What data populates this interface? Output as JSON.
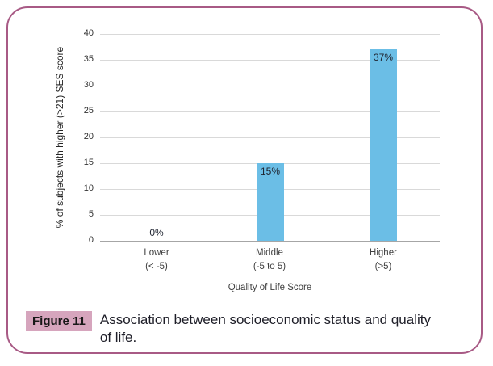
{
  "figure": {
    "label": "Figure 11",
    "caption": "Association between socioeconomic status and quality of life.",
    "border_color": "#a85a85",
    "label_bg": "#d6a5bd"
  },
  "chart_data": {
    "type": "bar",
    "categories": [
      "Lower",
      "Middle",
      "Higher"
    ],
    "category_sublabels": [
      "(< -5)",
      "(-5 to 5)",
      "(>5)"
    ],
    "values": [
      0,
      15,
      37
    ],
    "bar_labels": [
      "0%",
      "15%",
      "37%"
    ],
    "title": "",
    "xlabel": "Quality of Life Score",
    "ylabel": "% of subjects with higher (>21) SES score",
    "ylim": [
      0,
      40
    ],
    "yticks": [
      0,
      5,
      10,
      15,
      20,
      25,
      30,
      35,
      40
    ],
    "grid": true,
    "legend": false,
    "bar_color": "#6bbee6",
    "gridline_color": "#d9d9d9",
    "axis_color": "#a6a6a6",
    "bar_label_color": "#1f2430"
  }
}
